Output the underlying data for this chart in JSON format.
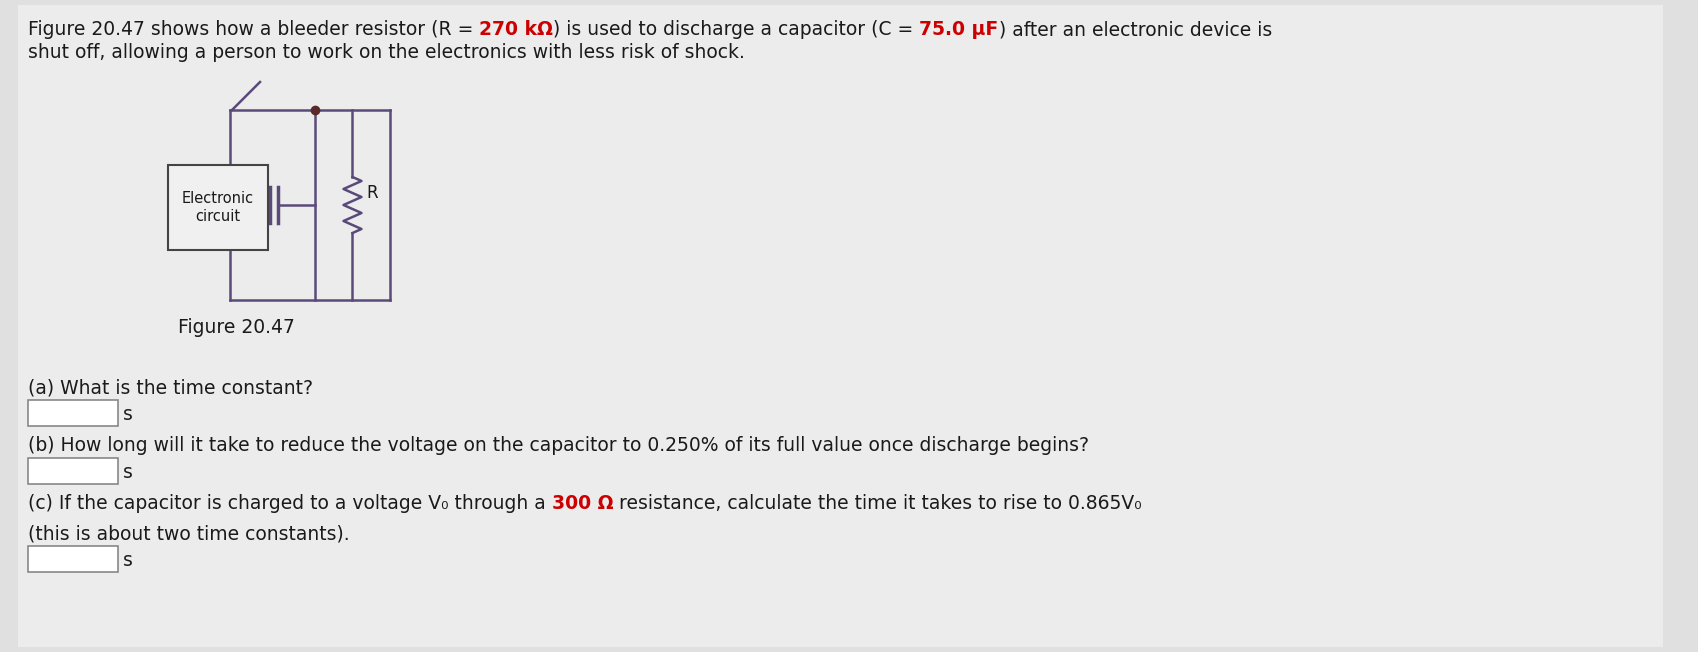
{
  "background_color": "#e0e0e0",
  "content_bg": "#ebebeb",
  "text_color": "#1a1a1a",
  "highlight_color": "#cc0000",
  "line1_p1": "Figure 20.47 shows how a bleeder resistor (R = ",
  "line1_r_value": "270 kΩ",
  "line1_p2": ") is used to discharge a capacitor (C = ",
  "line1_c_value": "75.0 μF",
  "line1_p3": ") after an electronic device is",
  "line2": "shut off, allowing a person to work on the electronics with less risk of shock.",
  "fig_caption": "Figure 20.47",
  "qa_label": "(a) What is the time constant?",
  "qb_label": "(b) How long will it take to reduce the voltage on the capacitor to 0.250% of its full value once discharge begins?",
  "qc_p1": "(c) If the capacitor is charged to a voltage V₀ through a ",
  "qc_resistance": "300 Ω",
  "qc_p2": " resistance, calculate the time it takes to rise to 0.865V₀",
  "qc_line2": "(this is about two time constants).",
  "s_label": "s",
  "box_color": "#ffffff",
  "wire_color": "#5a4a7a",
  "circuit_text": "Electronic\ncircuit",
  "font_size_main": 13.5
}
